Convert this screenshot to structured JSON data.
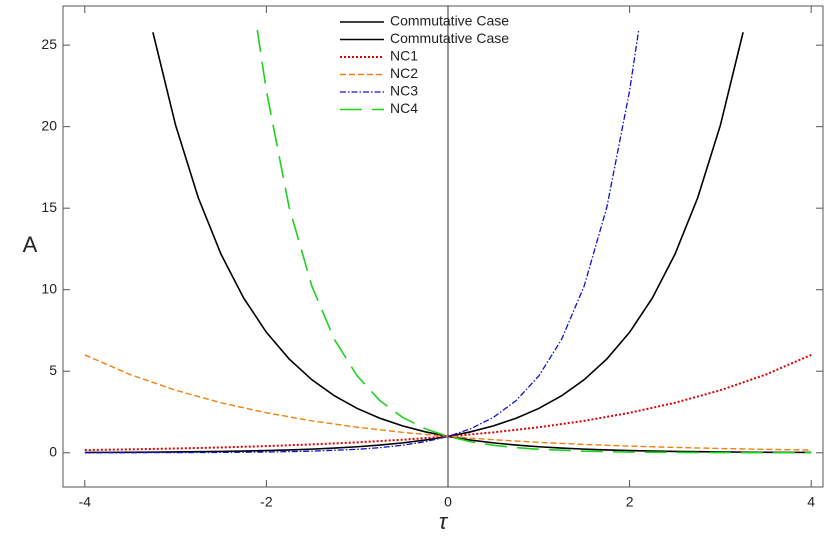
{
  "chart_data": {
    "type": "line",
    "xlabel": "τ",
    "ylabel": "A",
    "xlim": [
      -4.24,
      4.13
    ],
    "ylim": [
      -2.1,
      27.4
    ],
    "xticks": [
      -4,
      -2,
      0,
      2,
      4
    ],
    "yticks": [
      0,
      5,
      10,
      15,
      20,
      25
    ],
    "legend": "top",
    "series": [
      {
        "name": "Commutative Case",
        "color": "#000000",
        "x": [
          -4,
          -3.75,
          -3.5,
          -3.25,
          -3,
          -2.75,
          -2.5,
          -2.25,
          -2,
          -1.75,
          -1.5,
          -1.25,
          -1,
          -0.75,
          -0.5,
          -0.25,
          0,
          0.25,
          0.5,
          0.75,
          1,
          1.25,
          1.5,
          1.75,
          2,
          2.25,
          2.5,
          2.75,
          3,
          3.25
        ],
        "values": [
          0.018,
          0.024,
          0.03,
          0.039,
          0.05,
          0.064,
          0.082,
          0.105,
          0.135,
          0.174,
          0.223,
          0.287,
          0.368,
          0.472,
          0.607,
          0.779,
          1,
          1.284,
          1.649,
          2.117,
          2.718,
          3.49,
          4.482,
          5.755,
          7.389,
          9.488,
          12.18,
          15.64,
          20.09,
          25.79
        ]
      },
      {
        "name": "Commutative Case",
        "color": "#000000",
        "x": [
          -3.25,
          -3,
          -2.75,
          -2.5,
          -2.25,
          -2,
          -1.75,
          -1.5,
          -1.25,
          -1,
          -0.75,
          -0.5,
          -0.25,
          0,
          0.25,
          0.5,
          0.75,
          1,
          1.25,
          1.5,
          1.75,
          2,
          2.25,
          2.5,
          2.75,
          3,
          3.25,
          3.5,
          3.75,
          4
        ],
        "values": [
          25.79,
          20.09,
          15.64,
          12.18,
          9.488,
          7.389,
          5.755,
          4.482,
          3.49,
          2.718,
          2.117,
          1.649,
          1.284,
          1,
          0.779,
          0.607,
          0.472,
          0.368,
          0.287,
          0.223,
          0.174,
          0.135,
          0.105,
          0.082,
          0.064,
          0.05,
          0.039,
          0.03,
          0.024,
          0.018
        ]
      },
      {
        "name": "NC1",
        "color": "#e00000",
        "x": [
          -4,
          -3.5,
          -3,
          -2.5,
          -2,
          -1.5,
          -1,
          -0.5,
          0,
          0.5,
          1,
          1.5,
          2,
          2.5,
          3,
          3.5,
          4
        ],
        "values": [
          0.167,
          0.208,
          0.261,
          0.326,
          0.408,
          0.511,
          0.639,
          0.799,
          1,
          1.251,
          1.565,
          1.958,
          2.45,
          3.065,
          3.835,
          4.797,
          6
        ]
      },
      {
        "name": "NC2",
        "color": "#f08010",
        "x": [
          -4,
          -3.5,
          -3,
          -2.5,
          -2,
          -1.5,
          -1,
          -0.5,
          0,
          0.5,
          1,
          1.5,
          2,
          2.5,
          3,
          3.5,
          4
        ],
        "values": [
          6,
          4.797,
          3.835,
          3.065,
          2.45,
          1.958,
          1.565,
          1.251,
          1,
          0.799,
          0.639,
          0.511,
          0.408,
          0.326,
          0.261,
          0.208,
          0.167
        ]
      },
      {
        "name": "NC3",
        "color": "#1010d0",
        "x": [
          -4,
          -3.5,
          -3,
          -2.5,
          -2,
          -1.5,
          -1,
          -0.75,
          -0.5,
          -0.25,
          0,
          0.25,
          0.5,
          0.75,
          1,
          1.25,
          1.5,
          1.75,
          2,
          2.1
        ],
        "values": [
          0.002,
          0.0044,
          0.0096,
          0.021,
          0.045,
          0.098,
          0.212,
          0.313,
          0.461,
          0.679,
          1,
          1.473,
          2.171,
          3.198,
          4.711,
          6.941,
          10.23,
          15.07,
          22.2,
          25.92
        ]
      },
      {
        "name": "NC4",
        "color": "#20d020",
        "x": [
          -2.1,
          -2,
          -1.75,
          -1.5,
          -1.25,
          -1,
          -0.75,
          -0.5,
          -0.25,
          0,
          0.25,
          0.5,
          0.75,
          1,
          1.5,
          2,
          2.5,
          3,
          3.5,
          4
        ],
        "values": [
          25.92,
          22.2,
          15.07,
          10.23,
          6.941,
          4.711,
          3.198,
          2.171,
          1.473,
          1,
          0.679,
          0.461,
          0.313,
          0.212,
          0.098,
          0.045,
          0.021,
          0.0096,
          0.0044,
          0.002
        ]
      }
    ]
  }
}
